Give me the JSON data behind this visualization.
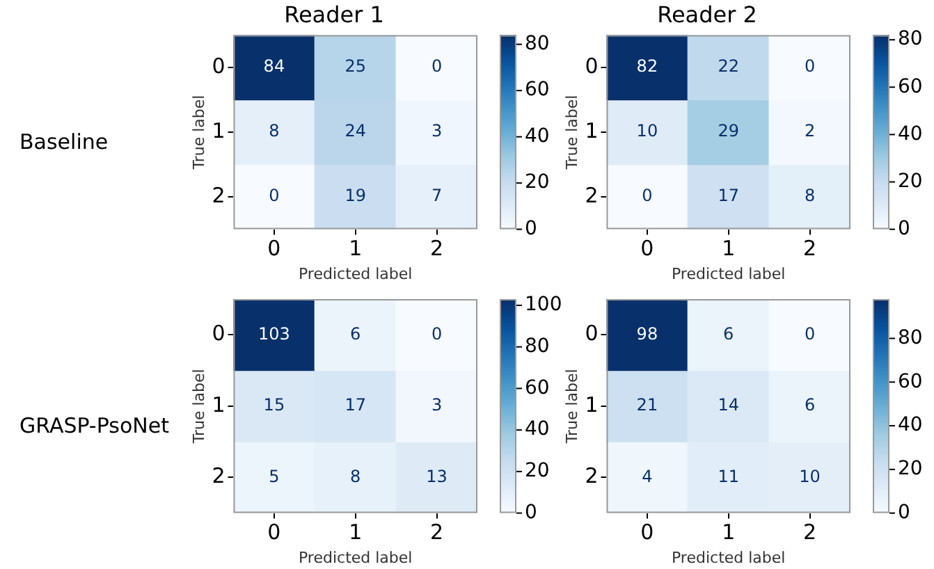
{
  "chart_data": [
    {
      "type": "heatmap",
      "title": "Reader 1",
      "xlabel": "Predicted label",
      "ylabel": "True label",
      "annotations": [
        "Baseline"
      ],
      "categories": [
        "0",
        "1",
        "2"
      ],
      "y_categories": [
        "0",
        "1",
        "2"
      ],
      "data_labels": true,
      "cells": [
        [
          84,
          25,
          0
        ],
        [
          8,
          24,
          3
        ],
        [
          0,
          19,
          7
        ]
      ],
      "clim": [
        0,
        84
      ],
      "cticks": [
        0,
        20,
        40,
        60,
        80
      ]
    },
    {
      "type": "heatmap",
      "title": "Reader 2",
      "xlabel": "Predicted label",
      "ylabel": "True label",
      "categories": [
        "0",
        "1",
        "2"
      ],
      "y_categories": [
        "0",
        "1",
        "2"
      ],
      "data_labels": true,
      "cells": [
        [
          82,
          22,
          0
        ],
        [
          10,
          29,
          2
        ],
        [
          0,
          17,
          8
        ]
      ],
      "clim": [
        0,
        82
      ],
      "cticks": [
        0,
        20,
        40,
        60,
        80
      ]
    },
    {
      "type": "heatmap",
      "xlabel": "Predicted label",
      "ylabel": "True label",
      "annotations": [
        "GRASP-PsoNet"
      ],
      "categories": [
        "0",
        "1",
        "2"
      ],
      "y_categories": [
        "0",
        "1",
        "2"
      ],
      "data_labels": true,
      "cells": [
        [
          103,
          6,
          0
        ],
        [
          15,
          17,
          3
        ],
        [
          5,
          8,
          13
        ]
      ],
      "clim": [
        0,
        103
      ],
      "cticks": [
        0,
        20,
        40,
        60,
        80,
        100
      ]
    },
    {
      "type": "heatmap",
      "xlabel": "Predicted label",
      "ylabel": "True label",
      "categories": [
        "0",
        "1",
        "2"
      ],
      "y_categories": [
        "0",
        "1",
        "2"
      ],
      "data_labels": true,
      "cells": [
        [
          98,
          6,
          0
        ],
        [
          21,
          14,
          6
        ],
        [
          4,
          11,
          10
        ]
      ],
      "clim": [
        0,
        98
      ],
      "cticks": [
        0,
        20,
        40,
        60,
        80
      ]
    }
  ]
}
